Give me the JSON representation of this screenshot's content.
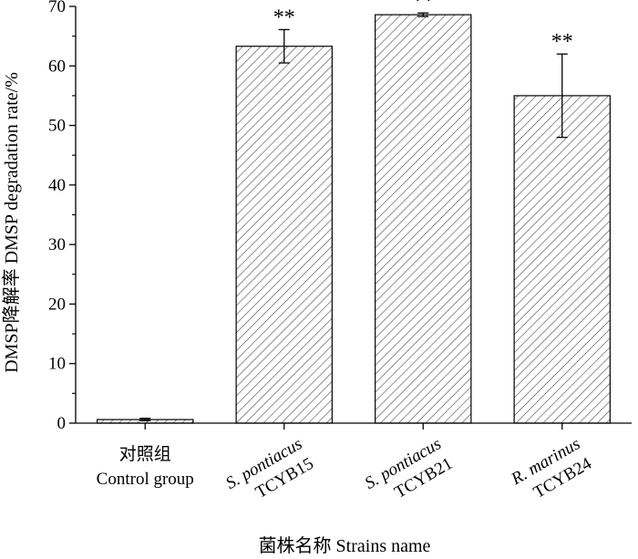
{
  "chart_data": {
    "type": "bar",
    "categories": [
      {
        "lines": [
          {
            "text": "对照组",
            "italic": false
          },
          {
            "text": "Control group",
            "italic": false
          }
        ],
        "rotated": false
      },
      {
        "lines": [
          {
            "text": "S. pontiacus",
            "italic": true
          },
          {
            "text": "TCYB15",
            "italic": false
          }
        ],
        "rotated": true
      },
      {
        "lines": [
          {
            "text": "S. pontiacus",
            "italic": true
          },
          {
            "text": "TCYB21",
            "italic": false
          }
        ],
        "rotated": true
      },
      {
        "lines": [
          {
            "text": "R. marinus",
            "italic": true
          },
          {
            "text": "TCYB24",
            "italic": false
          }
        ],
        "rotated": true
      }
    ],
    "values": [
      0.6,
      63.3,
      68.6,
      55.0
    ],
    "errors": [
      0.2,
      2.8,
      0.3,
      7.0
    ],
    "significance": [
      "",
      "**",
      "**",
      "**"
    ],
    "xlabel": "菌株名称 Strains name",
    "ylabel": "DMSP降解率 DMSP degradation rate/%",
    "ylim": [
      0,
      70
    ],
    "yticks": [
      0,
      10,
      20,
      30,
      40,
      50,
      60,
      70
    ],
    "grid": false,
    "bar_fill": "diagonal-hatch",
    "bar_color": "#ffffff",
    "hatch_color": "#555555"
  }
}
